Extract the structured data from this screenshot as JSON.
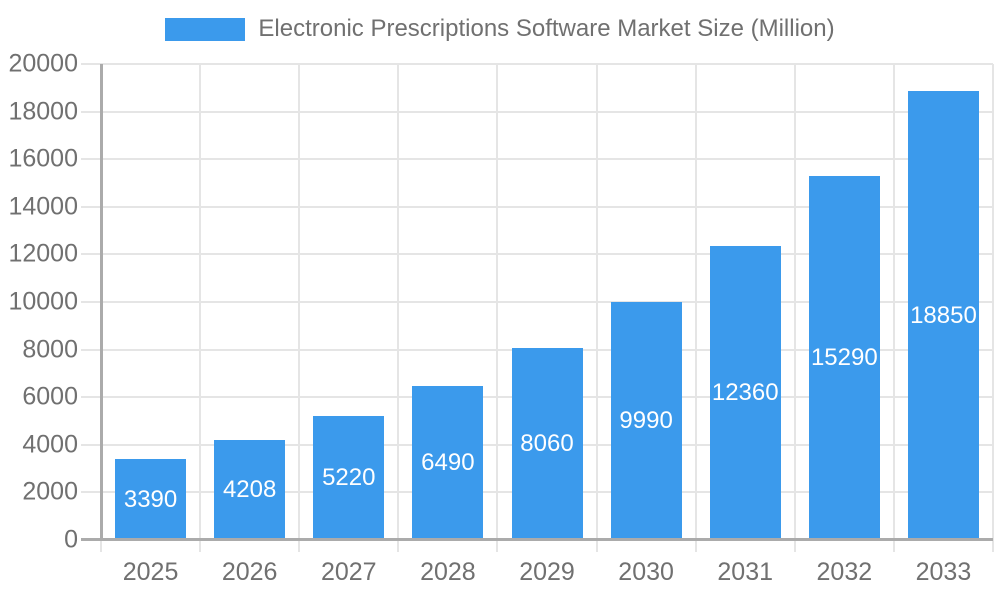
{
  "chart_data": {
    "type": "bar",
    "categories": [
      "2025",
      "2026",
      "2027",
      "2028",
      "2029",
      "2030",
      "2031",
      "2032",
      "2033"
    ],
    "series": [
      {
        "name": "Electronic Prescriptions Software Market Size (Million)",
        "values": [
          3390,
          4208,
          5220,
          6490,
          8060,
          9990,
          12360,
          15290,
          18850
        ]
      }
    ],
    "title": "",
    "xlabel": "",
    "ylabel": "",
    "ylim": [
      0,
      20000
    ],
    "ytick_step": 2000,
    "grid": true,
    "legend_position": "top",
    "value_labels": "inside-center"
  },
  "colors": {
    "bar": "#3B9AEC",
    "grid": "#E5E5E5",
    "axis": "#ABABAB",
    "text": "#707070",
    "value_label": "#FFFFFF",
    "background": "#FFFFFF"
  }
}
